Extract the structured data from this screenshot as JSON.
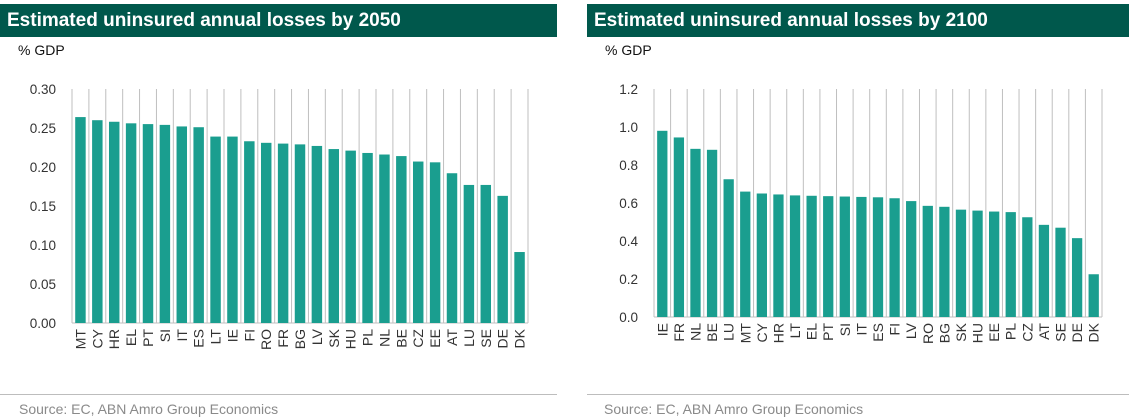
{
  "colors": {
    "bar": "#1a9e8f",
    "header": "#00584c",
    "grid": "#bfbfbf"
  },
  "chart_data": [
    {
      "type": "bar",
      "title": "Estimated uninsured annual losses by 2050",
      "ylabel": "% GDP",
      "source": "Source: EC, ABN Amro Group Economics",
      "ylim": [
        0,
        0.3
      ],
      "yticks": [
        "0.00",
        "0.05",
        "0.10",
        "0.15",
        "0.20",
        "0.25",
        "0.30"
      ],
      "grid": "vertical",
      "categories": [
        "MT",
        "CY",
        "HR",
        "EL",
        "PT",
        "SI",
        "IT",
        "ES",
        "LT",
        "IE",
        "FI",
        "RO",
        "FR",
        "BG",
        "LV",
        "SK",
        "HU",
        "PL",
        "NL",
        "BE",
        "CZ",
        "EE",
        "AT",
        "LU",
        "SE",
        "DE",
        "DK"
      ],
      "values": [
        0.264,
        0.26,
        0.258,
        0.256,
        0.255,
        0.254,
        0.252,
        0.251,
        0.239,
        0.239,
        0.233,
        0.231,
        0.23,
        0.229,
        0.227,
        0.223,
        0.221,
        0.218,
        0.216,
        0.214,
        0.207,
        0.206,
        0.192,
        0.177,
        0.177,
        0.163,
        0.091
      ]
    },
    {
      "type": "bar",
      "title": "Estimated uninsured annual losses by 2100",
      "ylabel": "% GDP",
      "source": "Source: EC, ABN Amro Group Economics",
      "ylim": [
        0,
        1.2
      ],
      "yticks": [
        "0.0",
        "0.2",
        "0.4",
        "0.6",
        "0.8",
        "1.0",
        "1.2"
      ],
      "grid": "vertical",
      "categories": [
        "IE",
        "FR",
        "NL",
        "BE",
        "LU",
        "MT",
        "CY",
        "HR",
        "LT",
        "EL",
        "PT",
        "SI",
        "IT",
        "ES",
        "FI",
        "LV",
        "RO",
        "BG",
        "SK",
        "HU",
        "EE",
        "PL",
        "CZ",
        "AT",
        "SE",
        "DE",
        "DK"
      ],
      "values": [
        0.98,
        0.945,
        0.885,
        0.88,
        0.725,
        0.66,
        0.65,
        0.645,
        0.64,
        0.638,
        0.636,
        0.634,
        0.632,
        0.63,
        0.625,
        0.61,
        0.585,
        0.58,
        0.565,
        0.56,
        0.555,
        0.552,
        0.525,
        0.485,
        0.47,
        0.415,
        0.225
      ]
    }
  ]
}
